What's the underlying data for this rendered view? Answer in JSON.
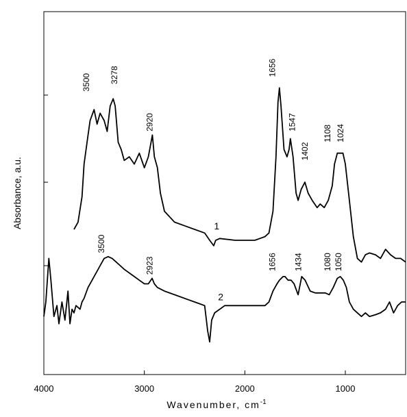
{
  "chart_data": {
    "type": "line",
    "title": "",
    "xlabel": "Wavenumber, cm",
    "xlabel_superscript": "-1",
    "ylabel": "Absorbance, a.u.",
    "xlim": [
      4000,
      400
    ],
    "x_reversed": true,
    "xticks": [
      4000,
      3000,
      2000,
      1000
    ],
    "xtick_labels": [
      "4000",
      "3000",
      "2000",
      "1000"
    ],
    "ylim": [
      0,
      1
    ],
    "yticks": [
      0.3,
      0.53,
      0.77
    ],
    "ytick_labels_shown": false,
    "grid": false,
    "legend": "none",
    "series": [
      {
        "label": "1",
        "label_at": [
          2280,
          0.4
        ],
        "color": "#000000",
        "points": [
          [
            3700,
            0.4
          ],
          [
            3660,
            0.42
          ],
          [
            3620,
            0.49
          ],
          [
            3600,
            0.58
          ],
          [
            3560,
            0.66
          ],
          [
            3540,
            0.7
          ],
          [
            3500,
            0.73
          ],
          [
            3470,
            0.69
          ],
          [
            3440,
            0.72
          ],
          [
            3400,
            0.7
          ],
          [
            3370,
            0.67
          ],
          [
            3340,
            0.74
          ],
          [
            3310,
            0.76
          ],
          [
            3290,
            0.74
          ],
          [
            3260,
            0.64
          ],
          [
            3230,
            0.62
          ],
          [
            3200,
            0.59
          ],
          [
            3150,
            0.6
          ],
          [
            3100,
            0.58
          ],
          [
            3050,
            0.61
          ],
          [
            3000,
            0.57
          ],
          [
            2960,
            0.6
          ],
          [
            2920,
            0.66
          ],
          [
            2900,
            0.6
          ],
          [
            2870,
            0.57
          ],
          [
            2840,
            0.5
          ],
          [
            2800,
            0.45
          ],
          [
            2700,
            0.42
          ],
          [
            2600,
            0.41
          ],
          [
            2500,
            0.4
          ],
          [
            2400,
            0.39
          ],
          [
            2350,
            0.37
          ],
          [
            2310,
            0.355
          ],
          [
            2290,
            0.37
          ],
          [
            2250,
            0.375
          ],
          [
            2100,
            0.37
          ],
          [
            2000,
            0.37
          ],
          [
            1900,
            0.37
          ],
          [
            1800,
            0.38
          ],
          [
            1760,
            0.39
          ],
          [
            1720,
            0.45
          ],
          [
            1690,
            0.6
          ],
          [
            1670,
            0.75
          ],
          [
            1656,
            0.79
          ],
          [
            1640,
            0.74
          ],
          [
            1610,
            0.62
          ],
          [
            1580,
            0.6
          ],
          [
            1560,
            0.62
          ],
          [
            1547,
            0.65
          ],
          [
            1520,
            0.6
          ],
          [
            1490,
            0.5
          ],
          [
            1470,
            0.48
          ],
          [
            1440,
            0.51
          ],
          [
            1402,
            0.53
          ],
          [
            1370,
            0.5
          ],
          [
            1330,
            0.48
          ],
          [
            1280,
            0.46
          ],
          [
            1250,
            0.47
          ],
          [
            1210,
            0.46
          ],
          [
            1170,
            0.48
          ],
          [
            1130,
            0.52
          ],
          [
            1108,
            0.58
          ],
          [
            1080,
            0.61
          ],
          [
            1050,
            0.61
          ],
          [
            1024,
            0.61
          ],
          [
            1000,
            0.58
          ],
          [
            960,
            0.48
          ],
          [
            920,
            0.38
          ],
          [
            880,
            0.32
          ],
          [
            840,
            0.31
          ],
          [
            800,
            0.33
          ],
          [
            760,
            0.335
          ],
          [
            700,
            0.33
          ],
          [
            650,
            0.32
          ],
          [
            600,
            0.345
          ],
          [
            550,
            0.33
          ],
          [
            500,
            0.32
          ],
          [
            450,
            0.32
          ],
          [
            400,
            0.31
          ]
        ]
      },
      {
        "label": "2",
        "label_at": [
          2240,
          0.205
        ],
        "color": "#000000",
        "points": [
          [
            4000,
            0.16
          ],
          [
            3980,
            0.2
          ],
          [
            3950,
            0.32
          ],
          [
            3930,
            0.26
          ],
          [
            3900,
            0.16
          ],
          [
            3870,
            0.19
          ],
          [
            3850,
            0.14
          ],
          [
            3820,
            0.2
          ],
          [
            3790,
            0.15
          ],
          [
            3760,
            0.23
          ],
          [
            3740,
            0.14
          ],
          [
            3720,
            0.18
          ],
          [
            3700,
            0.17
          ],
          [
            3680,
            0.19
          ],
          [
            3640,
            0.18
          ],
          [
            3620,
            0.2
          ],
          [
            3600,
            0.21
          ],
          [
            3560,
            0.24
          ],
          [
            3520,
            0.26
          ],
          [
            3480,
            0.28
          ],
          [
            3440,
            0.3
          ],
          [
            3400,
            0.32
          ],
          [
            3360,
            0.325
          ],
          [
            3320,
            0.32
          ],
          [
            3280,
            0.31
          ],
          [
            3240,
            0.3
          ],
          [
            3200,
            0.29
          ],
          [
            3150,
            0.28
          ],
          [
            3100,
            0.27
          ],
          [
            3050,
            0.26
          ],
          [
            3000,
            0.25
          ],
          [
            2960,
            0.25
          ],
          [
            2923,
            0.265
          ],
          [
            2900,
            0.25
          ],
          [
            2870,
            0.24
          ],
          [
            2800,
            0.23
          ],
          [
            2700,
            0.22
          ],
          [
            2600,
            0.21
          ],
          [
            2500,
            0.2
          ],
          [
            2450,
            0.195
          ],
          [
            2400,
            0.19
          ],
          [
            2370,
            0.12
          ],
          [
            2350,
            0.09
          ],
          [
            2330,
            0.15
          ],
          [
            2300,
            0.17
          ],
          [
            2250,
            0.18
          ],
          [
            2200,
            0.19
          ],
          [
            2100,
            0.19
          ],
          [
            2000,
            0.19
          ],
          [
            1900,
            0.19
          ],
          [
            1800,
            0.19
          ],
          [
            1760,
            0.2
          ],
          [
            1720,
            0.23
          ],
          [
            1680,
            0.25
          ],
          [
            1656,
            0.26
          ],
          [
            1620,
            0.27
          ],
          [
            1600,
            0.27
          ],
          [
            1570,
            0.26
          ],
          [
            1540,
            0.26
          ],
          [
            1510,
            0.25
          ],
          [
            1470,
            0.22
          ],
          [
            1434,
            0.27
          ],
          [
            1400,
            0.26
          ],
          [
            1350,
            0.23
          ],
          [
            1300,
            0.225
          ],
          [
            1250,
            0.225
          ],
          [
            1200,
            0.225
          ],
          [
            1160,
            0.22
          ],
          [
            1120,
            0.24
          ],
          [
            1080,
            0.265
          ],
          [
            1050,
            0.27
          ],
          [
            1020,
            0.26
          ],
          [
            990,
            0.24
          ],
          [
            960,
            0.2
          ],
          [
            920,
            0.18
          ],
          [
            880,
            0.17
          ],
          [
            840,
            0.16
          ],
          [
            800,
            0.17
          ],
          [
            760,
            0.16
          ],
          [
            700,
            0.165
          ],
          [
            650,
            0.17
          ],
          [
            600,
            0.18
          ],
          [
            560,
            0.2
          ],
          [
            520,
            0.17
          ],
          [
            480,
            0.19
          ],
          [
            440,
            0.2
          ],
          [
            400,
            0.2
          ]
        ]
      }
    ],
    "annotations": [
      {
        "text": "3500",
        "x": 3550,
        "y": 0.78
      },
      {
        "text": "3278",
        "x": 3270,
        "y": 0.8
      },
      {
        "text": "2920",
        "x": 2920,
        "y": 0.67
      },
      {
        "text": "1656",
        "x": 1700,
        "y": 0.82
      },
      {
        "text": "1547",
        "x": 1500,
        "y": 0.67
      },
      {
        "text": "1402",
        "x": 1375,
        "y": 0.59
      },
      {
        "text": "1108",
        "x": 1150,
        "y": 0.64
      },
      {
        "text": "1024",
        "x": 1020,
        "y": 0.64
      },
      {
        "text": "3500",
        "x": 3400,
        "y": 0.335
      },
      {
        "text": "2923",
        "x": 2920,
        "y": 0.275
      },
      {
        "text": "1656",
        "x": 1700,
        "y": 0.285
      },
      {
        "text": "1434",
        "x": 1440,
        "y": 0.285
      },
      {
        "text": "1080",
        "x": 1150,
        "y": 0.285
      },
      {
        "text": "1050",
        "x": 1040,
        "y": 0.285
      }
    ]
  }
}
